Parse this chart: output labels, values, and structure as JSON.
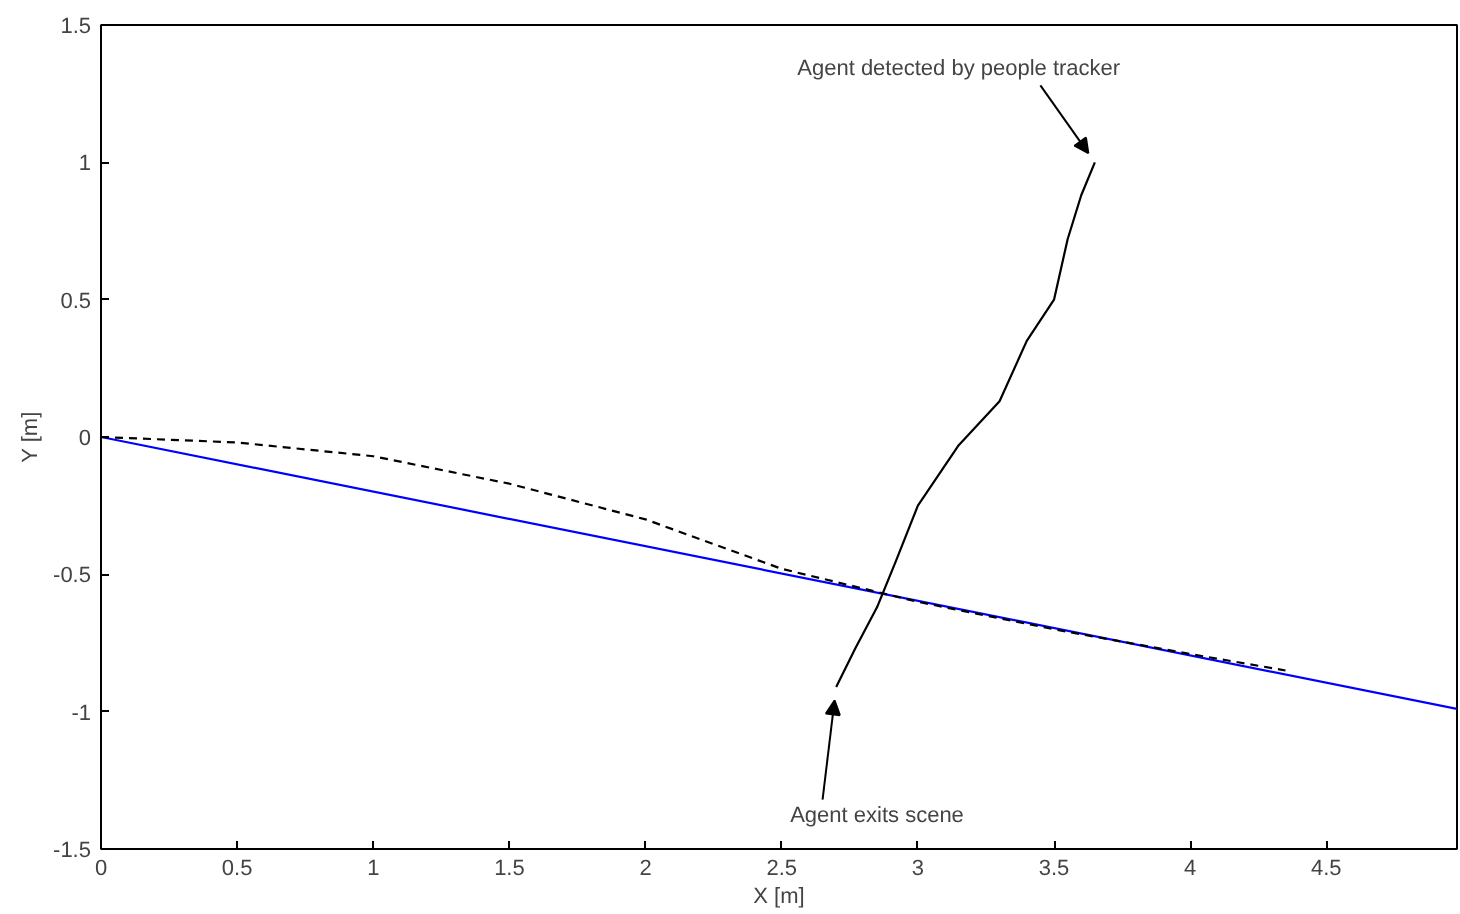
{
  "chart_data": {
    "type": "line",
    "xlabel": "X [m]",
    "ylabel": "Y [m]",
    "xlim": [
      0,
      4.98
    ],
    "ylim": [
      -1.5,
      1.5
    ],
    "xticks": [
      0,
      0.5,
      1,
      1.5,
      2,
      2.5,
      3,
      3.5,
      4,
      4.5
    ],
    "yticks": [
      -1.5,
      -1,
      -0.5,
      0,
      0.5,
      1,
      1.5
    ],
    "grid": false,
    "marker": "none",
    "series": [
      {
        "color": "#0000ff",
        "line_style": "solid",
        "x": [
          0,
          4.98
        ],
        "values": [
          0,
          -0.99
        ]
      },
      {
        "color": "#000000",
        "line_style": "dashed",
        "x": [
          0,
          0.5,
          1,
          1.5,
          2,
          2.5,
          3,
          3.5,
          4,
          4.35
        ],
        "values": [
          0,
          -0.02,
          -0.07,
          -0.17,
          -0.3,
          -0.48,
          -0.6,
          -0.7,
          -0.79,
          -0.85
        ]
      },
      {
        "color": "#000000",
        "line_style": "solid",
        "x": [
          3.65,
          3.6,
          3.55,
          3.5,
          3.4,
          3.3,
          3.15,
          3.0,
          2.92,
          2.85,
          2.77,
          2.7
        ],
        "values": [
          1.0,
          0.88,
          0.72,
          0.5,
          0.35,
          0.13,
          -0.03,
          -0.25,
          -0.45,
          -0.62,
          -0.77,
          -0.91
        ]
      }
    ],
    "annotations": [
      {
        "text": "Agent detected by people tracker",
        "x": 3.65,
        "y": 1.0
      },
      {
        "text": "Agent exits scene",
        "x": 2.7,
        "y": -0.91
      }
    ]
  }
}
